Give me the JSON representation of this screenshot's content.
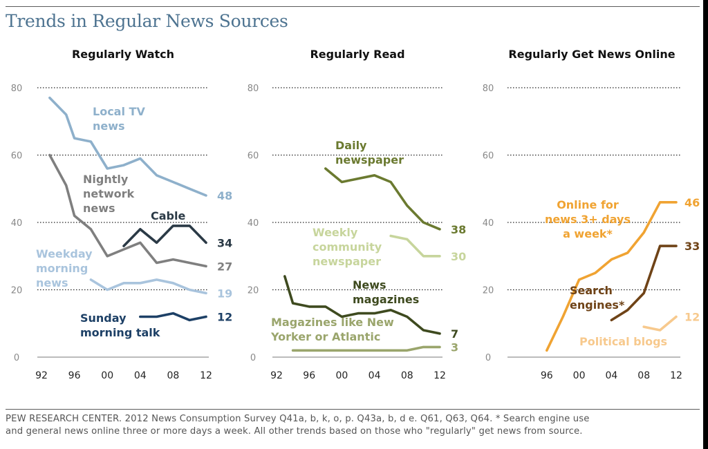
{
  "title": "Trends in Regular News Sources",
  "source_lines": [
    "PEW RESEARCH CENTER. 2012 News Consumption Survey Q41a, b, k, o, p. Q43a, b, d e. Q61, Q63, Q64. * Search engine use",
    "and general news online three or more days a week. All other trends based on those who \"regularly\" get news from source."
  ],
  "chart_data": [
    {
      "type": "line",
      "title": "Regularly Watch",
      "x_ticks": [
        "92",
        "96",
        "00",
        "04",
        "08",
        "12"
      ],
      "y_ticks": [
        0,
        20,
        40,
        60,
        80
      ],
      "ylim": [
        0,
        80
      ],
      "xlim": [
        1992,
        2012
      ],
      "grid": true,
      "series": [
        {
          "name": "Local TV news",
          "color": "#8eb0cb",
          "label_lines": [
            "Local TV",
            "news"
          ],
          "end_label": "48",
          "x": [
            1993,
            1995,
            1996,
            1998,
            2000,
            2002,
            2004,
            2006,
            2008,
            2010,
            2012
          ],
          "y": [
            77,
            72,
            65,
            64,
            56,
            57,
            59,
            54,
            52,
            50,
            48
          ]
        },
        {
          "name": "Nightly network news",
          "color": "#7f7f7f",
          "label_lines": [
            "Nightly",
            "network",
            "news"
          ],
          "end_label": "27",
          "x": [
            1993,
            1995,
            1996,
            1998,
            2000,
            2002,
            2004,
            2006,
            2008,
            2010,
            2012
          ],
          "y": [
            60,
            51,
            42,
            38,
            30,
            32,
            34,
            28,
            29,
            28,
            27
          ]
        },
        {
          "name": "Cable",
          "color": "#2b3a46",
          "label_lines": [
            "Cable"
          ],
          "end_label": "34",
          "x": [
            2002,
            2004,
            2006,
            2008,
            2010,
            2012
          ],
          "y": [
            33,
            38,
            34,
            39,
            39,
            34
          ]
        },
        {
          "name": "Weekday morning news",
          "color": "#a9c4dd",
          "label_lines": [
            "Weekday",
            "morning",
            "news"
          ],
          "end_label": "19",
          "x": [
            1998,
            2000,
            2002,
            2004,
            2006,
            2008,
            2010,
            2012
          ],
          "y": [
            23,
            20,
            22,
            22,
            23,
            22,
            20,
            19
          ]
        },
        {
          "name": "Sunday morning talk",
          "color": "#1d4066",
          "label_lines": [
            "Sunday",
            "morning talk"
          ],
          "end_label": "12",
          "x": [
            2004,
            2006,
            2008,
            2010,
            2012
          ],
          "y": [
            12,
            12,
            13,
            11,
            12
          ]
        }
      ]
    },
    {
      "type": "line",
      "title": "Regularly Read",
      "x_ticks": [
        "92",
        "96",
        "00",
        "04",
        "08",
        "12"
      ],
      "y_ticks": [
        0,
        20,
        40,
        60,
        80
      ],
      "ylim": [
        0,
        80
      ],
      "xlim": [
        1992,
        2012
      ],
      "grid": true,
      "series": [
        {
          "name": "Daily newspaper",
          "color": "#6b7a30",
          "label_lines": [
            "Daily",
            "newspaper"
          ],
          "end_label": "38",
          "x": [
            1998,
            2000,
            2002,
            2004,
            2006,
            2008,
            2010,
            2012
          ],
          "y": [
            56,
            52,
            53,
            54,
            52,
            45,
            40,
            38
          ]
        },
        {
          "name": "Weekly community newspaper",
          "color": "#c7d59c",
          "label_lines": [
            "Weekly",
            "community",
            "newspaper"
          ],
          "end_label": "30",
          "x": [
            2006,
            2008,
            2010,
            2012
          ],
          "y": [
            36,
            35,
            30,
            30
          ]
        },
        {
          "name": "News magazines",
          "color": "#3e4a1f",
          "label_lines": [
            "News",
            "magazines"
          ],
          "end_label": "7",
          "x": [
            1993,
            1994,
            1996,
            1998,
            2000,
            2002,
            2004,
            2006,
            2008,
            2010,
            2012
          ],
          "y": [
            24,
            16,
            15,
            15,
            12,
            13,
            13,
            14,
            12,
            8,
            7
          ]
        },
        {
          "name": "Magazines like New Yorker or Atlantic",
          "color": "#9aa56c",
          "label_lines": [
            "Magazines like New",
            "Yorker or Atlantic"
          ],
          "end_label": "3",
          "x": [
            1994,
            1996,
            1998,
            2000,
            2002,
            2004,
            2006,
            2008,
            2010,
            2012
          ],
          "y": [
            2,
            2,
            2,
            2,
            2,
            2,
            2,
            2,
            3,
            3
          ]
        }
      ]
    },
    {
      "type": "line",
      "title": "Regularly Get News Online",
      "x_ticks": [
        "96",
        "00",
        "04",
        "08",
        "12"
      ],
      "y_ticks": [
        0,
        20,
        40,
        60,
        80
      ],
      "ylim": [
        0,
        80
      ],
      "xlim": [
        1992,
        2012
      ],
      "grid": true,
      "series": [
        {
          "name": "Online for news 3+ days a week*",
          "color": "#f0a332",
          "label_lines": [
            "Online for",
            "news 3+ days",
            "a week*"
          ],
          "end_label": "46",
          "x": [
            1996,
            1998,
            2000,
            2002,
            2004,
            2006,
            2008,
            2010,
            2012
          ],
          "y": [
            2,
            12,
            23,
            25,
            29,
            31,
            37,
            46,
            46
          ]
        },
        {
          "name": "Search engines*",
          "color": "#6f4317",
          "label_lines": [
            "Search",
            "engines*"
          ],
          "end_label": "33",
          "x": [
            2004,
            2006,
            2008,
            2010,
            2012
          ],
          "y": [
            11,
            14,
            19,
            33,
            33
          ]
        },
        {
          "name": "Political blogs",
          "color": "#f7c98d",
          "label_lines": [
            "Political blogs"
          ],
          "end_label": "12",
          "x": [
            2008,
            2010,
            2012
          ],
          "y": [
            9,
            8,
            12
          ]
        }
      ]
    }
  ]
}
